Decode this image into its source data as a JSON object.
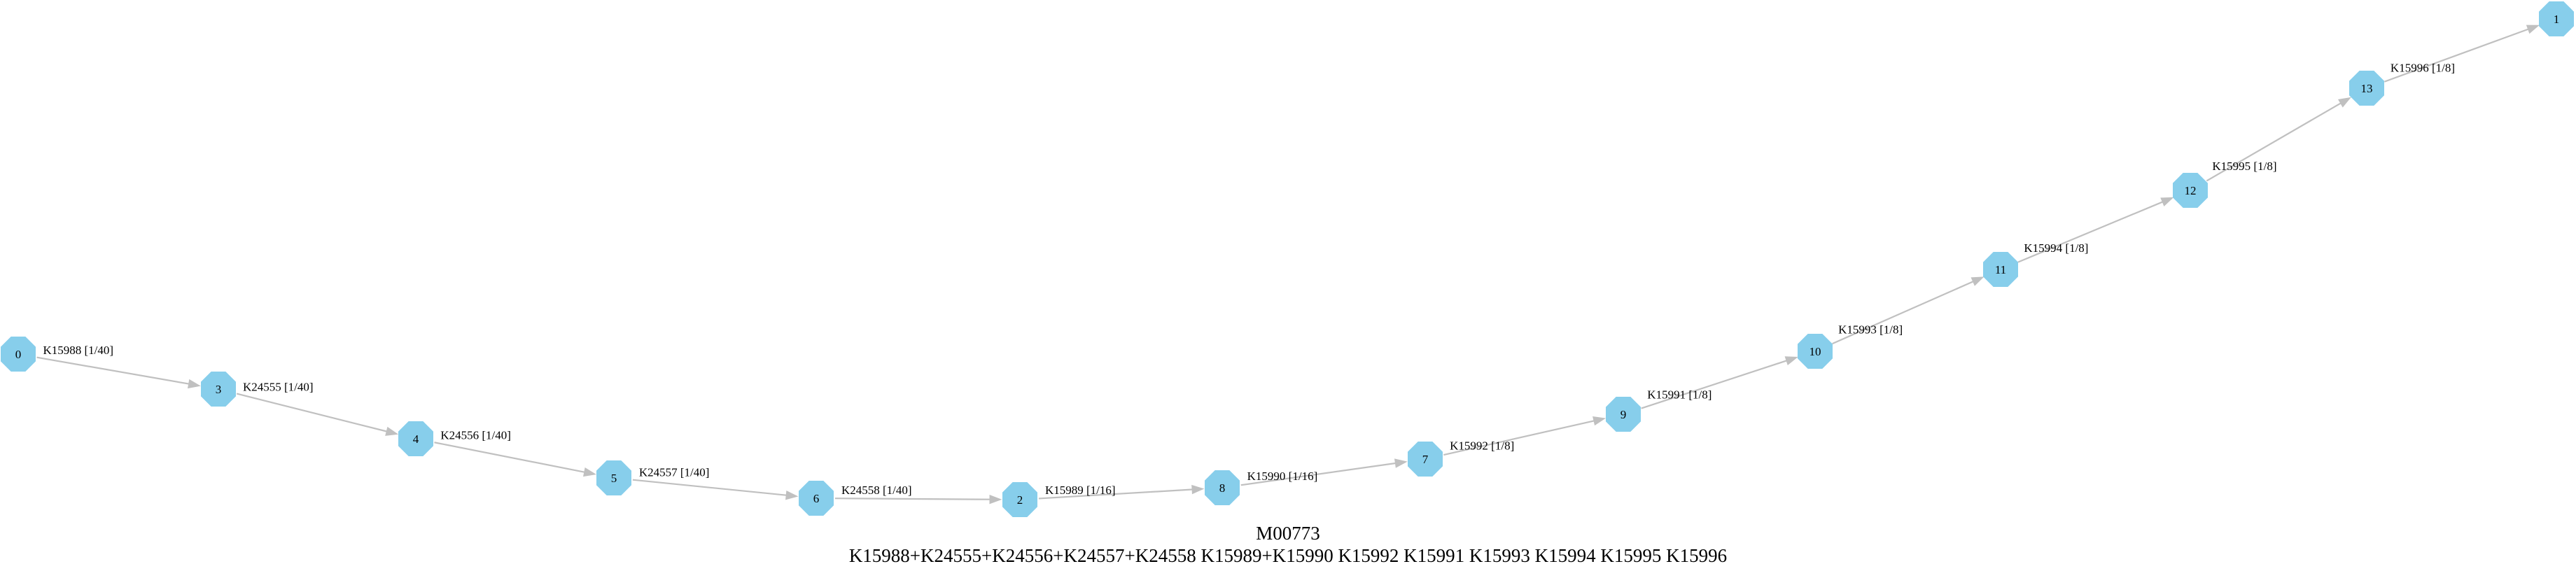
{
  "diagram": {
    "title": "M00773",
    "subtitle": "K15988+K24555+K24556+K24557+K24558 K15989+K15990 K15992 K15991 K15993 K15994 K15995 K15996",
    "colors": {
      "node_fill": "#87ceeb",
      "edge": "#c0c0c0",
      "text": "#000000"
    },
    "nodes": [
      "0",
      "3",
      "4",
      "5",
      "6",
      "2",
      "8",
      "7",
      "9",
      "10",
      "11",
      "12",
      "13",
      "1"
    ],
    "edges": [
      {
        "from": "0",
        "to": "3",
        "label": "K15988 [1/40]"
      },
      {
        "from": "3",
        "to": "4",
        "label": "K24555 [1/40]"
      },
      {
        "from": "4",
        "to": "5",
        "label": "K24556 [1/40]"
      },
      {
        "from": "5",
        "to": "6",
        "label": "K24557 [1/40]"
      },
      {
        "from": "6",
        "to": "2",
        "label": "K24558 [1/40]"
      },
      {
        "from": "2",
        "to": "8",
        "label": "K15989 [1/16]"
      },
      {
        "from": "8",
        "to": "7",
        "label": "K15990 [1/16]"
      },
      {
        "from": "7",
        "to": "9",
        "label": "K15992 [1/8]"
      },
      {
        "from": "9",
        "to": "10",
        "label": "K15991 [1/8]"
      },
      {
        "from": "10",
        "to": "11",
        "label": "K15993 [1/8]"
      },
      {
        "from": "11",
        "to": "12",
        "label": "K15994 [1/8]"
      },
      {
        "from": "12",
        "to": "13",
        "label": "K15995 [1/8]"
      },
      {
        "from": "13",
        "to": "1",
        "label": "K15996 [1/8]"
      }
    ]
  }
}
